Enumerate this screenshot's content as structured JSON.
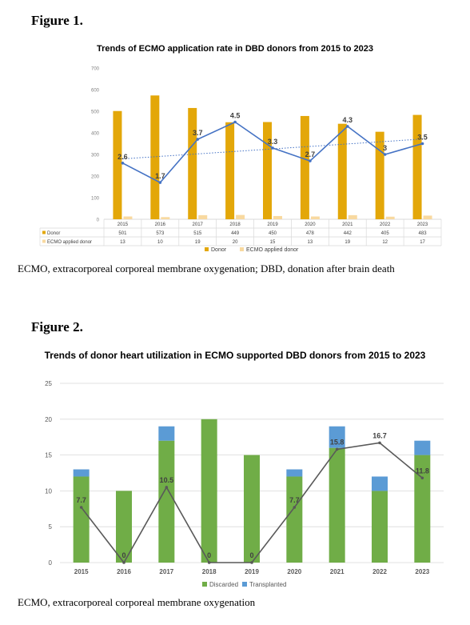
{
  "figure1": {
    "label": "Figure 1.",
    "caption": "ECMO, extracorporeal corporeal membrane oxygenation; DBD, donation after brain death"
  },
  "figure2": {
    "label": "Figure 2.",
    "caption": "ECMO, extracorporeal corporeal membrane oxygenation"
  },
  "colors": {
    "donor": "#E3A709",
    "ecmo_applied": "#F8D9A0",
    "rate_line": "#4472C4",
    "discarded": "#70AD47",
    "transplanted": "#5B9BD5",
    "utilization_line": "#595959"
  },
  "chart_data": [
    {
      "type": "bar",
      "title": "Trends of ECMO application rate in DBD donors from 2015 to 2023",
      "categories": [
        "2015",
        "2016",
        "2017",
        "2018",
        "2019",
        "2020",
        "2021",
        "2022",
        "2023"
      ],
      "ylim": [
        0,
        700
      ],
      "yticks": [
        0,
        100,
        200,
        300,
        400,
        500,
        600,
        700
      ],
      "grid": false,
      "legend": "bottom (data table)",
      "series": [
        {
          "name": "Donor",
          "values": [
            501,
            573,
            515,
            449,
            450,
            478,
            442,
            405,
            483
          ]
        },
        {
          "name": "ECMO applied donor",
          "values": [
            13,
            10,
            19,
            20,
            15,
            13,
            19,
            12,
            17
          ]
        }
      ],
      "line_series": {
        "values": [
          2.6,
          1.7,
          3.7,
          4.5,
          3.3,
          2.7,
          4.3,
          3,
          3.5
        ],
        "labels": [
          "2.6",
          "1.7",
          "3.7",
          "4.5",
          "3.3",
          "2.7",
          "4.3",
          "3",
          "3.5"
        ],
        "trendline": "linear dotted"
      },
      "table_rows": [
        {
          "label": "Donor",
          "values": [
            "501",
            "573",
            "515",
            "449",
            "450",
            "478",
            "442",
            "405",
            "483"
          ]
        },
        {
          "label": "ECMO applied donor",
          "values": [
            "13",
            "10",
            "19",
            "20",
            "15",
            "13",
            "19",
            "12",
            "17"
          ]
        }
      ]
    },
    {
      "type": "bar",
      "stacked": true,
      "title": "Trends of donor heart utilization in ECMO supported DBD donors from 2015 to 2023",
      "categories": [
        "2015",
        "2016",
        "2017",
        "2018",
        "2019",
        "2020",
        "2021",
        "2022",
        "2023"
      ],
      "ylim": [
        0,
        25
      ],
      "yticks": [
        0,
        5,
        10,
        15,
        20,
        25
      ],
      "grid": true,
      "legend": "bottom",
      "series": [
        {
          "name": "Discarded",
          "values": [
            12,
            10,
            17,
            20,
            15,
            12,
            16,
            10,
            15
          ]
        },
        {
          "name": "Transplanted",
          "values": [
            1,
            0,
            2,
            0,
            0,
            1,
            3,
            2,
            2
          ]
        }
      ],
      "line_series": {
        "values": [
          7.7,
          0,
          10.5,
          0,
          0,
          7.7,
          15.8,
          16.7,
          11.8
        ],
        "labels": [
          "7.7",
          "0",
          "10.5",
          "0",
          "0",
          "7.7",
          "15.8",
          "16.7",
          "11.8"
        ]
      }
    }
  ]
}
